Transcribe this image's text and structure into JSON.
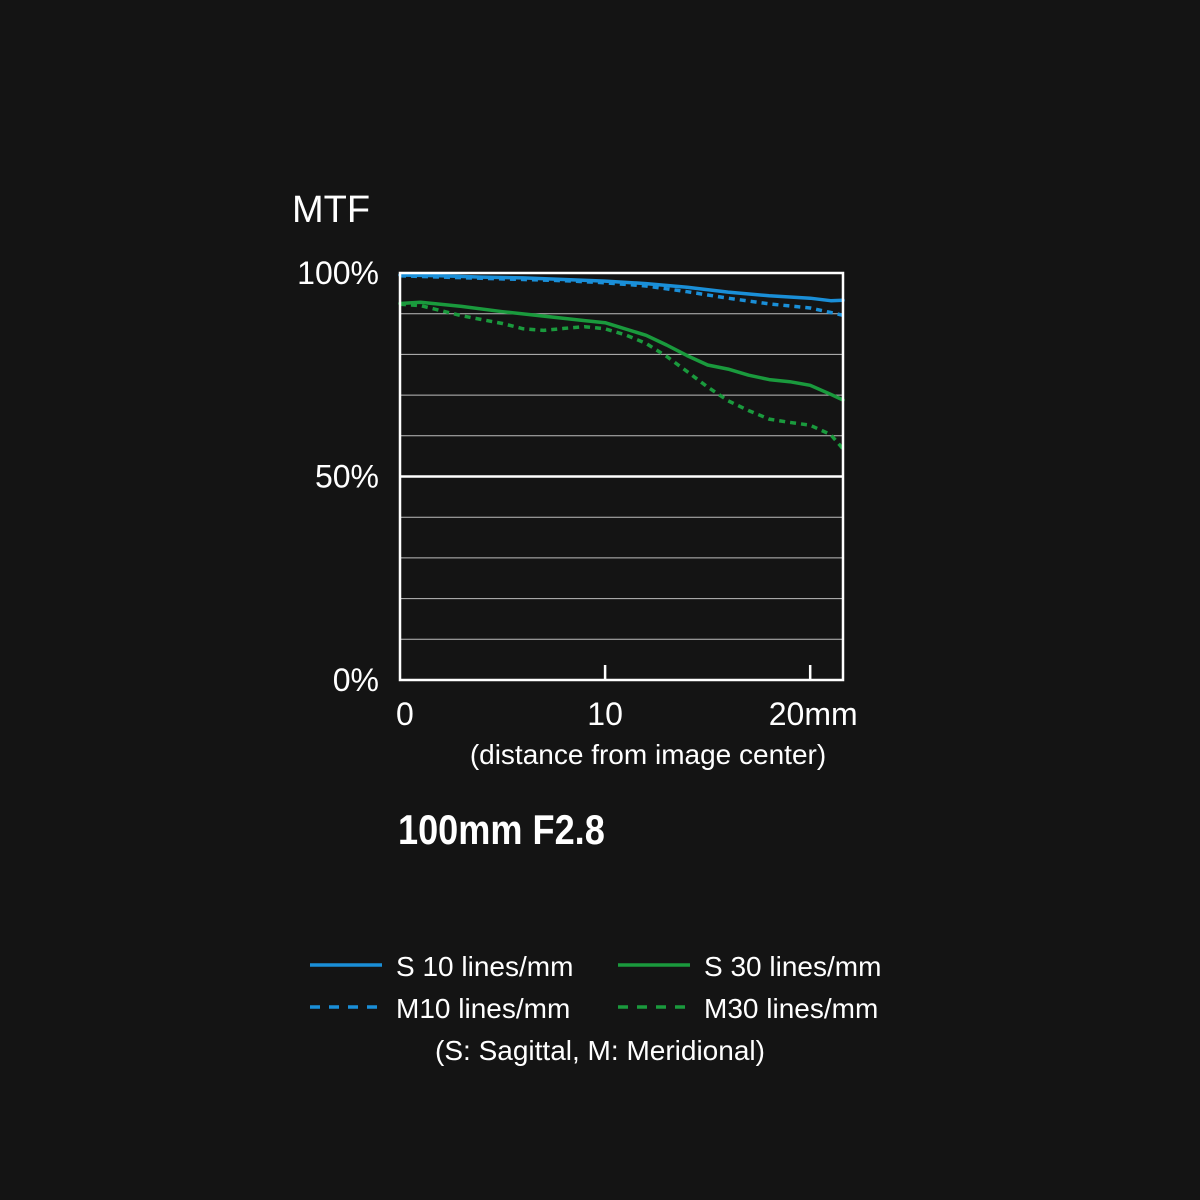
{
  "chart_data": {
    "type": "line",
    "title": "MTF",
    "xlabel": "(distance from image center)",
    "xlim": [
      0,
      21.6
    ],
    "ylim": [
      0,
      100
    ],
    "grid": true,
    "x_ticks": [
      {
        "value": 0,
        "label": "0"
      },
      {
        "value": 10,
        "label": "10"
      },
      {
        "value": 20,
        "label": "20mm"
      }
    ],
    "y_ticks": [
      {
        "value": 0,
        "label": "0%"
      },
      {
        "value": 50,
        "label": "50%"
      },
      {
        "value": 100,
        "label": "100%"
      }
    ],
    "y_gridlines": [
      10,
      20,
      30,
      40,
      50,
      60,
      70,
      80,
      90
    ],
    "series": [
      {
        "name": "S 10 lines/mm",
        "color": "#1a8fd8",
        "dash": "solid",
        "x": [
          0,
          2,
          4,
          6,
          8,
          10,
          12,
          14,
          16,
          18,
          20,
          21,
          21.6
        ],
        "y": [
          99.5,
          99.3,
          99.0,
          98.8,
          98.4,
          98.0,
          97.4,
          96.5,
          95.3,
          94.4,
          93.8,
          93.2,
          93.3
        ]
      },
      {
        "name": "M10 lines/mm",
        "color": "#1a8fd8",
        "dash": "dashed",
        "x": [
          0,
          2,
          4,
          6,
          8,
          10,
          12,
          14,
          16,
          18,
          20,
          21,
          21.6
        ],
        "y": [
          99.3,
          99.0,
          98.7,
          98.4,
          98.1,
          97.6,
          96.8,
          95.4,
          93.8,
          92.4,
          91.4,
          90.3,
          89.6
        ]
      },
      {
        "name": "S 30 lines/mm",
        "color": "#1a9a3d",
        "dash": "solid",
        "x": [
          0,
          1,
          3,
          5,
          7,
          9,
          10,
          12,
          13,
          14,
          15,
          16,
          17,
          18,
          19,
          20,
          21,
          21.6
        ],
        "y": [
          92.5,
          92.8,
          91.8,
          90.5,
          89.4,
          88.3,
          87.8,
          84.7,
          82.3,
          79.7,
          77.4,
          76.4,
          74.9,
          73.8,
          73.3,
          72.4,
          70.2,
          68.8
        ]
      },
      {
        "name": "M30 lines/mm",
        "color": "#1a9a3d",
        "dash": "dashed",
        "x": [
          0,
          1,
          3,
          5,
          6,
          7,
          8,
          9,
          10,
          11,
          12,
          13,
          14,
          15,
          16,
          17,
          18,
          19,
          20,
          21,
          21.6
        ],
        "y": [
          92.3,
          92.0,
          89.5,
          87.6,
          86.3,
          85.9,
          86.4,
          86.8,
          86.3,
          84.8,
          82.7,
          79.5,
          75.8,
          72.0,
          68.6,
          66.2,
          64.1,
          63.3,
          62.6,
          60.3,
          56.8
        ]
      }
    ],
    "legend": {
      "placement": "bottom",
      "note": "(S: Sagittal, M: Meridional)"
    }
  },
  "product": {
    "title": "100mm F2.8"
  },
  "colors": {
    "background": "#141414",
    "axis": "#ffffff",
    "grid": "#bdbdbd"
  }
}
